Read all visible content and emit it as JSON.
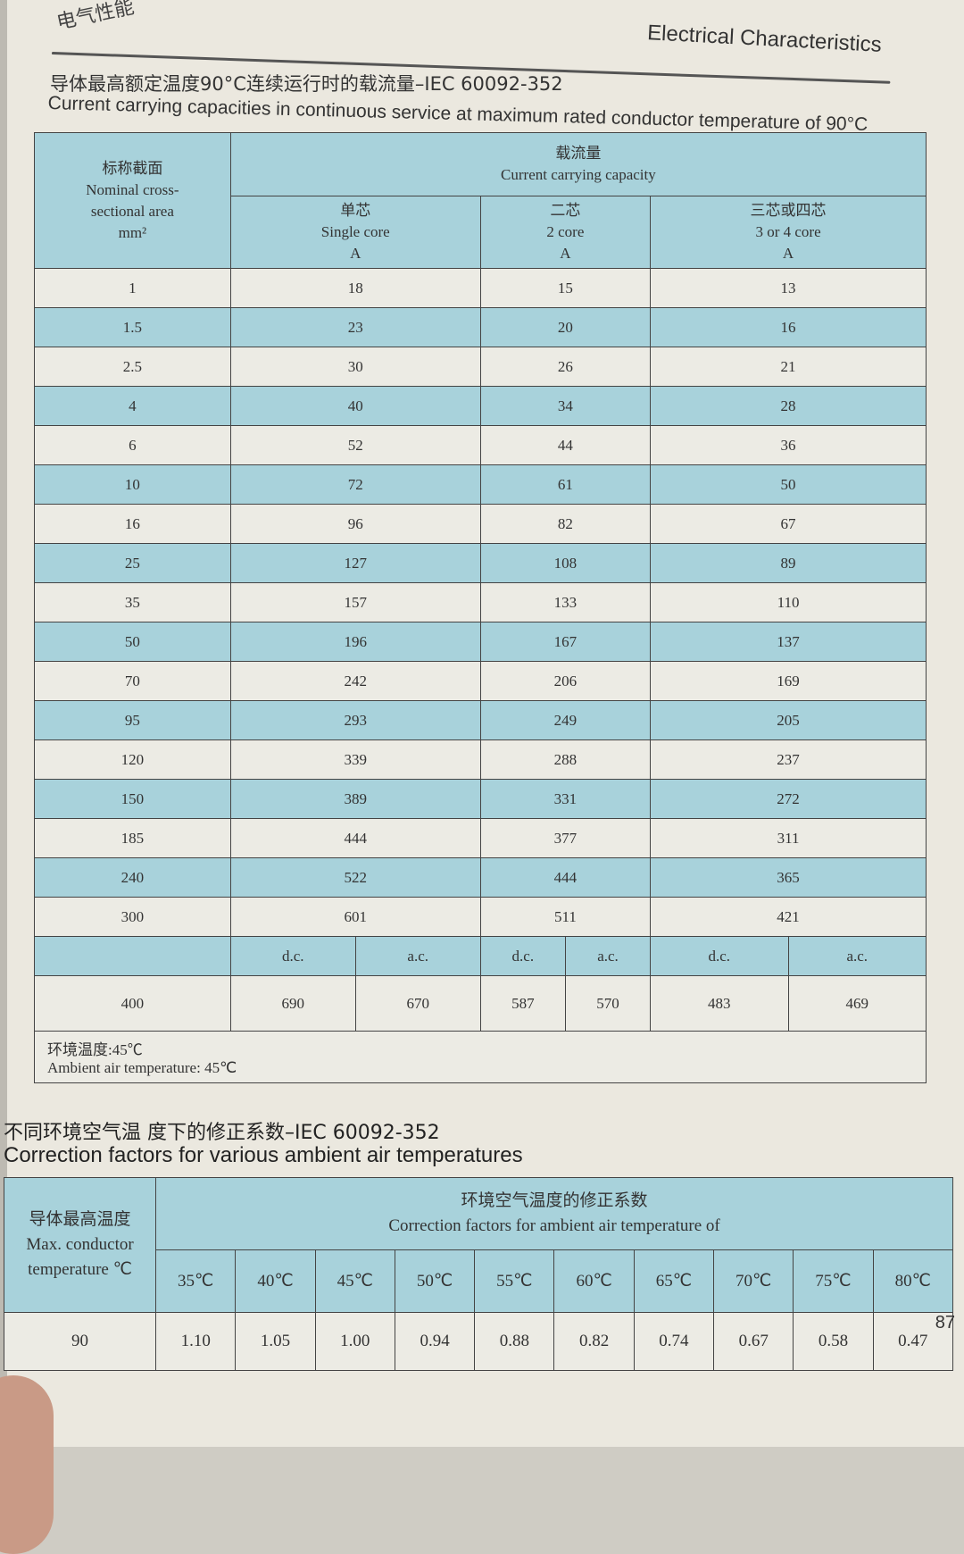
{
  "header": {
    "section_cn": "电气性能",
    "section_en": "Electrical Characteristics"
  },
  "table1": {
    "title_cn": "导体最高额定温度90°C连续运行时的载流量–IEC 60092-352",
    "title_en": "Current carrying capacities in continuous service at maximum rated conductor temperature of 90°C",
    "col_area": {
      "cn": "标称截面",
      "en1": "Nominal cross-",
      "en2": "sectional area",
      "unit": "mm²"
    },
    "group": {
      "cn": "载流量",
      "en": "Current carrying capacity"
    },
    "cols": [
      {
        "cn": "单芯",
        "en": "Single core",
        "unit": "A"
      },
      {
        "cn": "二芯",
        "en": "2 core",
        "unit": "A"
      },
      {
        "cn": "三芯或四芯",
        "en": "3 or 4 core",
        "unit": "A"
      }
    ],
    "rows": [
      [
        "1",
        "18",
        "15",
        "13"
      ],
      [
        "1.5",
        "23",
        "20",
        "16"
      ],
      [
        "2.5",
        "30",
        "26",
        "21"
      ],
      [
        "4",
        "40",
        "34",
        "28"
      ],
      [
        "6",
        "52",
        "44",
        "36"
      ],
      [
        "10",
        "72",
        "61",
        "50"
      ],
      [
        "16",
        "96",
        "82",
        "67"
      ],
      [
        "25",
        "127",
        "108",
        "89"
      ],
      [
        "35",
        "157",
        "133",
        "110"
      ],
      [
        "50",
        "196",
        "167",
        "137"
      ],
      [
        "70",
        "242",
        "206",
        "169"
      ],
      [
        "95",
        "293",
        "249",
        "205"
      ],
      [
        "120",
        "339",
        "288",
        "237"
      ],
      [
        "150",
        "389",
        "331",
        "272"
      ],
      [
        "185",
        "444",
        "377",
        "311"
      ],
      [
        "240",
        "522",
        "444",
        "365"
      ],
      [
        "300",
        "601",
        "511",
        "421"
      ]
    ],
    "dcac": [
      "d.c.",
      "a.c.",
      "d.c.",
      "a.c.",
      "d.c.",
      "a.c."
    ],
    "row400": [
      "400",
      "690",
      "670",
      "587",
      "570",
      "483",
      "469"
    ],
    "footer_cn": "环境温度:45℃",
    "footer_en": "Ambient air temperature: 45℃"
  },
  "table2": {
    "title_cn": "不同环境空气温 度下的修正系数–IEC 60092-352",
    "title_en": "Correction factors for various ambient air temperatures",
    "col_max": {
      "cn": "导体最高温度",
      "en1": "Max. conductor",
      "en2": "temperature ℃"
    },
    "group": {
      "cn": "环境空气温度的修正系数",
      "en": "Correction factors for ambient air temperature of"
    },
    "temps": [
      "35℃",
      "40℃",
      "45℃",
      "50℃",
      "55℃",
      "60℃",
      "65℃",
      "70℃",
      "75℃",
      "80℃"
    ],
    "row": [
      "90",
      "1.10",
      "1.05",
      "1.00",
      "0.94",
      "0.88",
      "0.82",
      "0.74",
      "0.67",
      "0.58",
      "0.47"
    ]
  },
  "page_number": "87",
  "colors": {
    "header_blue": "#a8d2db",
    "paper": "#ebe8df"
  }
}
